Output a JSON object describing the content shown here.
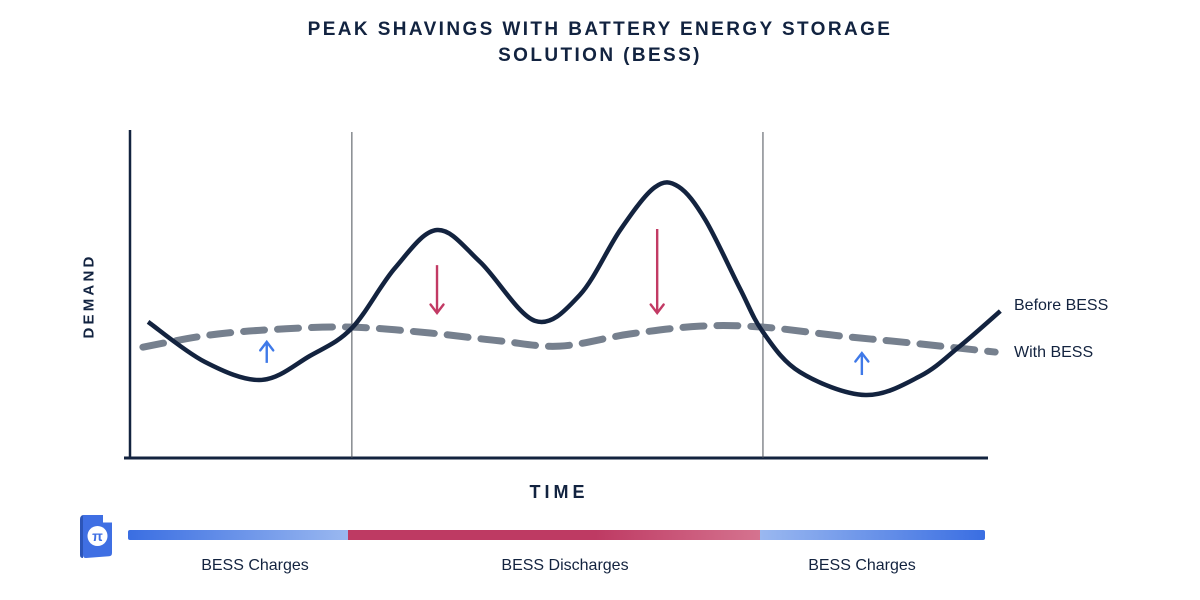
{
  "title": "PEAK SHAVINGS WITH BATTERY ENERGY STORAGE SOLUTION (BESS)",
  "axes": {
    "y_label": "DEMAND",
    "x_label": "TIME"
  },
  "legend": {
    "before": "Before BESS",
    "with": "With BESS"
  },
  "colors": {
    "navy": "#13233f",
    "curve_solid": "#13233f",
    "curve_dashed": "#76808e",
    "axis": "#13233f",
    "divider": "#4a4f57",
    "arrow_up_blue": "#3f79e8",
    "arrow_down_red": "#c23a64",
    "bar_blue": "#3a6ee2",
    "bar_blue_light": "#9ab8f0",
    "bar_red": "#be3a63",
    "bar_red_light": "#d5738f",
    "logo_blue": "#3f6fe3",
    "logo_blue_dark": "#2c55b8"
  },
  "logo": {
    "glyph": "π"
  },
  "chart_data": {
    "type": "line",
    "title": "PEAK SHAVINGS WITH BATTERY ENERGY STORAGE SOLUTION (BESS)",
    "xlabel": "TIME",
    "ylabel": "DEMAND",
    "grid": false,
    "legend_position": "right-of-line-ends",
    "x_unit": "percent_of_time_axis",
    "y_unit": "percent_of_demand_axis",
    "xlim": [
      0,
      100
    ],
    "ylim": [
      0,
      100
    ],
    "series": [
      {
        "name": "Before BESS",
        "style": "solid",
        "color": "#13233f",
        "width": 4.5,
        "points": [
          [
            2.1,
            41.5
          ],
          [
            8.7,
            29.3
          ],
          [
            15.3,
            23.8
          ],
          [
            20.9,
            31.1
          ],
          [
            25.8,
            39.6
          ],
          [
            30.8,
            57.9
          ],
          [
            35.7,
            69.5
          ],
          [
            40.7,
            59.8
          ],
          [
            47.1,
            41.8
          ],
          [
            52.3,
            49.7
          ],
          [
            57.0,
            69.5
          ],
          [
            61.0,
            82.5
          ],
          [
            63.8,
            82.7
          ],
          [
            66.9,
            72.6
          ],
          [
            70.9,
            51.8
          ],
          [
            73.6,
            38.4
          ],
          [
            77.9,
            26.2
          ],
          [
            85.5,
            19.2
          ],
          [
            91.9,
            25.0
          ],
          [
            96.5,
            34.1
          ],
          [
            101.2,
            44.8
          ]
        ]
      },
      {
        "name": "With BESS",
        "style": "dashed",
        "color": "#76808e",
        "width": 7,
        "points": [
          [
            1.5,
            33.8
          ],
          [
            9.3,
            37.5
          ],
          [
            17.4,
            39.3
          ],
          [
            25.8,
            39.9
          ],
          [
            34.9,
            38.1
          ],
          [
            43.0,
            35.7
          ],
          [
            50.0,
            34.1
          ],
          [
            58.1,
            37.8
          ],
          [
            66.3,
            40.2
          ],
          [
            73.6,
            39.9
          ],
          [
            82.6,
            37.2
          ],
          [
            90.7,
            35.1
          ],
          [
            100.6,
            32.3
          ]
        ]
      }
    ],
    "dividers_x": [
      25.8,
      73.6
    ],
    "arrows": [
      {
        "direction": "down",
        "color": "#c23a64",
        "x": 35.7,
        "y_from": 58.8,
        "y_to": 44.2
      },
      {
        "direction": "down",
        "color": "#c23a64",
        "x": 61.3,
        "y_from": 69.8,
        "y_to": 44.2
      },
      {
        "direction": "up",
        "color": "#3f79e8",
        "x": 15.9,
        "y_from": 29.0,
        "y_to": 35.4
      },
      {
        "direction": "up",
        "color": "#3f79e8",
        "x": 85.1,
        "y_from": 25.3,
        "y_to": 32.0
      }
    ],
    "regions": [
      {
        "label": "BESS Charges",
        "kind": "charge",
        "x_start": 0,
        "x_end": 25.7
      },
      {
        "label": "BESS Discharges",
        "kind": "discharge",
        "x_start": 25.7,
        "x_end": 73.7
      },
      {
        "label": "BESS Charges",
        "kind": "charge",
        "x_start": 73.7,
        "x_end": 100
      }
    ]
  }
}
